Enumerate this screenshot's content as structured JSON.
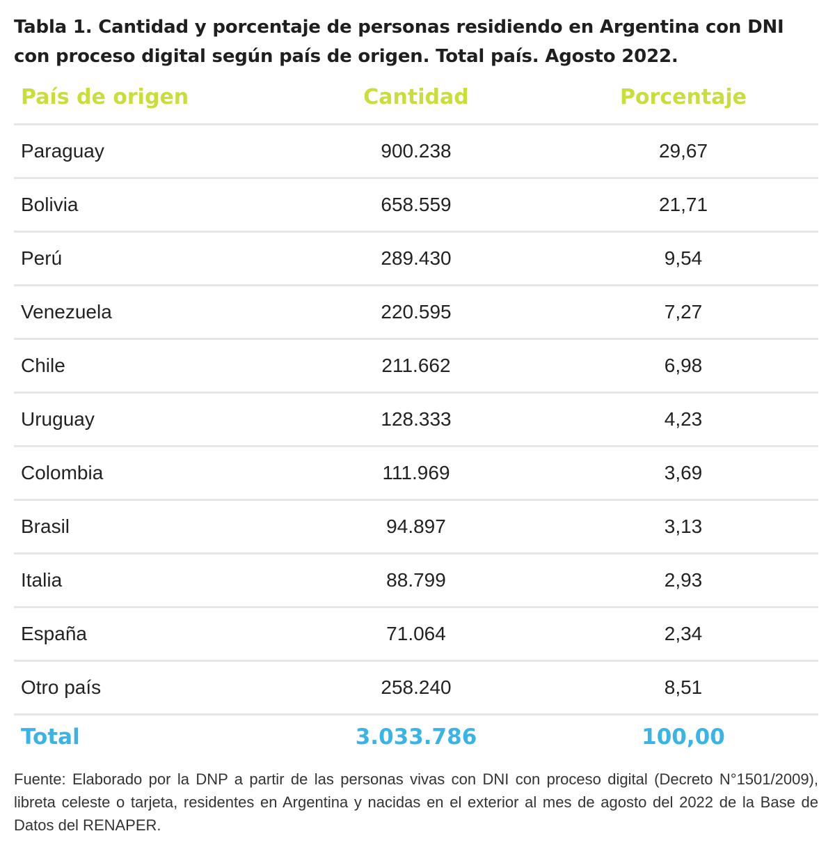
{
  "title": "Tabla 1. Cantidad y porcentaje de personas residiendo en Argentina con DNI con proceso digital según país de origen. Total país. Agosto 2022.",
  "table": {
    "headers": [
      "País de origen",
      "Cantidad",
      "Porcentaje"
    ],
    "rows": [
      {
        "country": "Paraguay",
        "quantity": "900.238",
        "percent": "29,67"
      },
      {
        "country": "Bolivia",
        "quantity": "658.559",
        "percent": "21,71"
      },
      {
        "country": "Perú",
        "quantity": "289.430",
        "percent": "9,54"
      },
      {
        "country": "Venezuela",
        "quantity": "220.595",
        "percent": "7,27"
      },
      {
        "country": "Chile",
        "quantity": "211.662",
        "percent": "6,98"
      },
      {
        "country": "Uruguay",
        "quantity": "128.333",
        "percent": "4,23"
      },
      {
        "country": "Colombia",
        "quantity": "111.969",
        "percent": "3,69"
      },
      {
        "country": "Brasil",
        "quantity": "94.897",
        "percent": "3,13"
      },
      {
        "country": "Italia",
        "quantity": "88.799",
        "percent": "2,93"
      },
      {
        "country": "España",
        "quantity": "71.064",
        "percent": "2,34"
      },
      {
        "country": "Otro país",
        "quantity": "258.240",
        "percent": "8,51"
      }
    ],
    "total": {
      "label": "Total",
      "quantity": "3.033.786",
      "percent": "100,00"
    }
  },
  "footnote": "Fuente: Elaborado por la DNP a partir de las personas vivas con DNI con proceso digital (Decreto N°1501/2009), libreta celeste o tarjeta, residentes en Argentina y nacidas en el exterior al mes de agosto del 2022 de la Base de Datos del RENAPER.",
  "colors": {
    "header_text": "#c9de3a",
    "total_text": "#3ab4e6",
    "row_divider": "#e6e6e6"
  }
}
